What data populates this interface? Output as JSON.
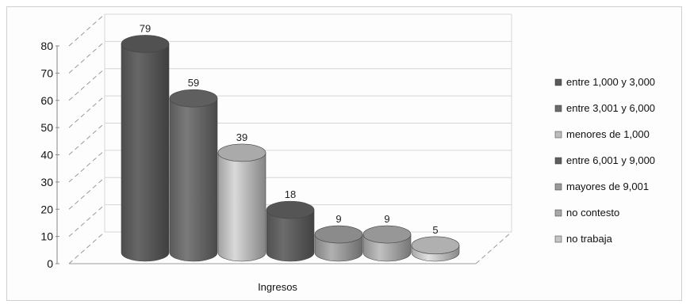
{
  "chart_data": {
    "type": "bar",
    "categories": [
      "Ingresos"
    ],
    "xlabel": "Ingresos",
    "ylim": [
      0,
      80
    ],
    "yticks": [
      0,
      10,
      20,
      30,
      40,
      50,
      60,
      70,
      80
    ],
    "grid": true,
    "legend_position": "right",
    "series": [
      {
        "name": "entre 1,000 y 3,000",
        "values": [
          79
        ],
        "color": "#5a5a5a"
      },
      {
        "name": "entre 3,001 y 6,000",
        "values": [
          59
        ],
        "color": "#6a6a6a"
      },
      {
        "name": "menores de 1,000",
        "values": [
          39
        ],
        "color": "#bdbdbd"
      },
      {
        "name": "entre 6,001 y 9,000",
        "values": [
          18
        ],
        "color": "#5e5e5e"
      },
      {
        "name": "mayores de 9,001",
        "values": [
          9
        ],
        "color": "#9a9a9a"
      },
      {
        "name": "no contesto",
        "values": [
          9
        ],
        "color": "#a8a8a8"
      },
      {
        "name": "no trabaja",
        "values": [
          5
        ],
        "color": "#c4c4c4"
      }
    ]
  }
}
